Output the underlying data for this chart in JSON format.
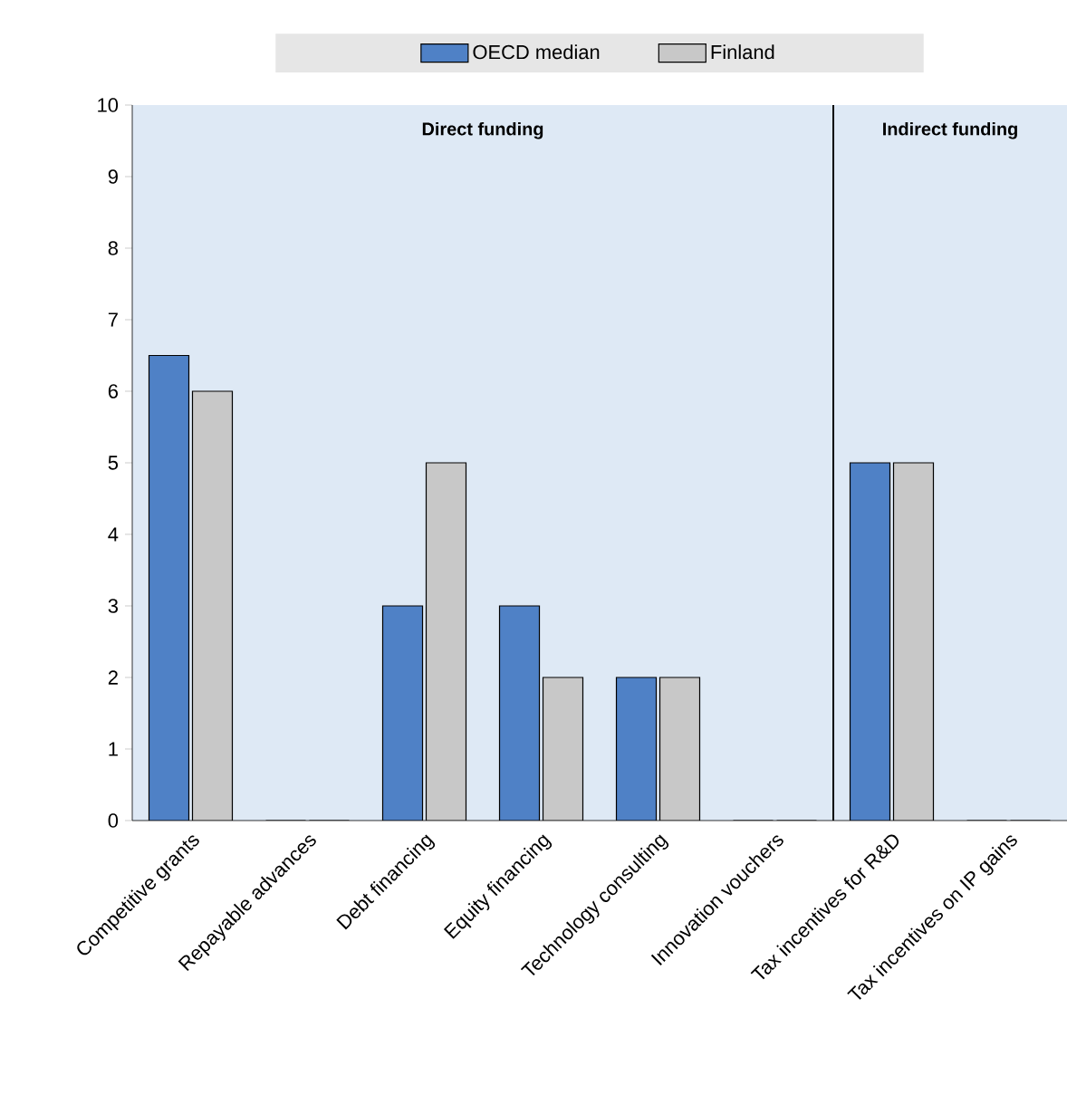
{
  "chart_data": {
    "type": "bar",
    "categories": [
      "Competitive grants",
      "Repayable advances",
      "Debt financing",
      "Equity financing",
      "Technology consulting",
      "Innovation vouchers",
      "Tax incentives for R&D",
      "Tax incentives on IP gains"
    ],
    "series": [
      {
        "name": "OECD median",
        "color": "#4f81c6",
        "values": [
          6.5,
          0,
          3,
          3,
          2,
          0,
          5,
          0
        ]
      },
      {
        "name": "Finland",
        "color": "#c8c8c8",
        "values": [
          6,
          0,
          5,
          2,
          2,
          0,
          5,
          0
        ]
      }
    ],
    "ylim": [
      0,
      10
    ],
    "yticks": [
      0,
      1,
      2,
      3,
      4,
      5,
      6,
      7,
      8,
      9,
      10
    ],
    "annotations": [
      "Direct funding",
      "Indirect funding"
    ],
    "legend": "top",
    "grid": false
  }
}
